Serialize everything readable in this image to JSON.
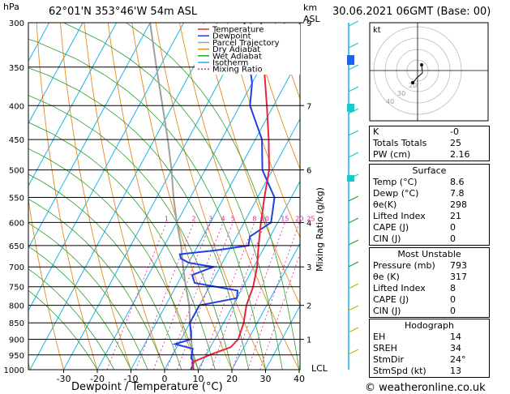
{
  "header": {
    "hpa_label": "hPa",
    "location": "62°01'N  353°46'W  54m  ASL",
    "km_label": "km",
    "asl_label": "ASL",
    "datetime": "30.06.2021  06GMT  (Base: 00)"
  },
  "footer": {
    "credit": "© weatheronline.co.uk"
  },
  "chart_data": {
    "type": "skew-t",
    "xlabel": "Dewpoint / Temperature (°C)",
    "ylabel": "Mixing Ratio (g/kg)",
    "pressure_levels": [
      300,
      350,
      400,
      450,
      500,
      550,
      600,
      650,
      700,
      750,
      800,
      850,
      900,
      950,
      1000
    ],
    "temp_ticks": [
      -30,
      -20,
      -10,
      0,
      10,
      20,
      30,
      40
    ],
    "km_ticks": [
      {
        "p": 300,
        "label": "9"
      },
      {
        "p": 400,
        "label": "7"
      },
      {
        "p": 500,
        "label": "6"
      },
      {
        "p": 600,
        "label": "4"
      },
      {
        "p": 700,
        "label": "3"
      },
      {
        "p": 800,
        "label": "2"
      },
      {
        "p": 900,
        "label": "1"
      }
    ],
    "lcl_label": "LCL",
    "mixing_ratio_labels": [
      "1",
      "2",
      "3",
      "4",
      "5",
      "8",
      "10",
      "15",
      "20",
      "25"
    ],
    "legend": [
      {
        "name": "Temperature",
        "color": "#e8243c"
      },
      {
        "name": "Dewpoint",
        "color": "#2040e8"
      },
      {
        "name": "Parcel Trajectory",
        "color": "#a0a0a0"
      },
      {
        "name": "Dry Adiabat",
        "color": "#e8891c"
      },
      {
        "name": "Wet Adiabat",
        "color": "#2ca02c"
      },
      {
        "name": "Isotherm",
        "color": "#19b4e8"
      },
      {
        "name": "Mixing Ratio",
        "color": "#e01ea0"
      }
    ],
    "temperature": [
      [
        1000,
        8.6
      ],
      [
        975,
        7
      ],
      [
        950,
        11
      ],
      [
        925,
        16
      ],
      [
        900,
        17
      ],
      [
        850,
        16
      ],
      [
        800,
        14
      ],
      [
        750,
        13
      ],
      [
        700,
        11
      ],
      [
        650,
        8
      ],
      [
        600,
        5
      ],
      [
        550,
        2
      ],
      [
        500,
        -1
      ],
      [
        450,
        -6
      ],
      [
        400,
        -12
      ],
      [
        350,
        -19
      ],
      [
        300,
        -27
      ]
    ],
    "dewpoint": [
      [
        1000,
        7.8
      ],
      [
        975,
        7.5
      ],
      [
        960,
        6
      ],
      [
        930,
        5
      ],
      [
        915,
        -1
      ],
      [
        900,
        3
      ],
      [
        880,
        2
      ],
      [
        850,
        0
      ],
      [
        820,
        0
      ],
      [
        800,
        0
      ],
      [
        780,
        10
      ],
      [
        760,
        9
      ],
      [
        740,
        -5
      ],
      [
        720,
        -7
      ],
      [
        700,
        -2
      ],
      [
        690,
        -10
      ],
      [
        680,
        -13
      ],
      [
        670,
        -14
      ],
      [
        660,
        -3
      ],
      [
        650,
        5
      ],
      [
        630,
        4
      ],
      [
        600,
        8
      ],
      [
        550,
        5
      ],
      [
        500,
        -3
      ],
      [
        450,
        -8
      ],
      [
        400,
        -17
      ],
      [
        370,
        -20
      ],
      [
        300,
        -32
      ]
    ],
    "parcel": [
      [
        1000,
        8.6
      ],
      [
        950,
        6
      ],
      [
        900,
        3
      ],
      [
        850,
        0
      ],
      [
        800,
        -3
      ],
      [
        750,
        -7
      ],
      [
        700,
        -11
      ],
      [
        650,
        -15
      ],
      [
        600,
        -20
      ],
      [
        550,
        -25
      ],
      [
        500,
        -30
      ],
      [
        450,
        -36
      ],
      [
        400,
        -43
      ],
      [
        350,
        -51
      ],
      [
        300,
        -60
      ]
    ],
    "indices": {
      "K": "-0",
      "Totals Totals": "25",
      "PW (cm)": "2.16"
    },
    "surface": {
      "title": "Surface",
      "rows": [
        {
          "label": "Temp (°C)",
          "value": "8.6"
        },
        {
          "label": "Dewp (°C)",
          "value": "7.8"
        },
        {
          "label": "θe(K)",
          "value": "298"
        },
        {
          "label": "Lifted Index",
          "value": "21"
        },
        {
          "label": "CAPE (J)",
          "value": "0"
        },
        {
          "label": "CIN (J)",
          "value": "0"
        }
      ]
    },
    "most_unstable": {
      "title": "Most Unstable",
      "rows": [
        {
          "label": "Pressure (mb)",
          "value": "793"
        },
        {
          "label": "θe (K)",
          "value": "317"
        },
        {
          "label": "Lifted Index",
          "value": "8"
        },
        {
          "label": "CAPE (J)",
          "value": "0"
        },
        {
          "label": "CIN (J)",
          "value": "0"
        }
      ]
    },
    "hodograph": {
      "title": "Hodograph",
      "label": "kt",
      "ring_labels": [
        "40",
        "30",
        "20"
      ],
      "rows": [
        {
          "label": "EH",
          "value": "14"
        },
        {
          "label": "SREH",
          "value": "34"
        },
        {
          "label": "StmDir",
          "value": "24°"
        },
        {
          "label": "StmSpd (kt)",
          "value": "13"
        }
      ]
    }
  }
}
